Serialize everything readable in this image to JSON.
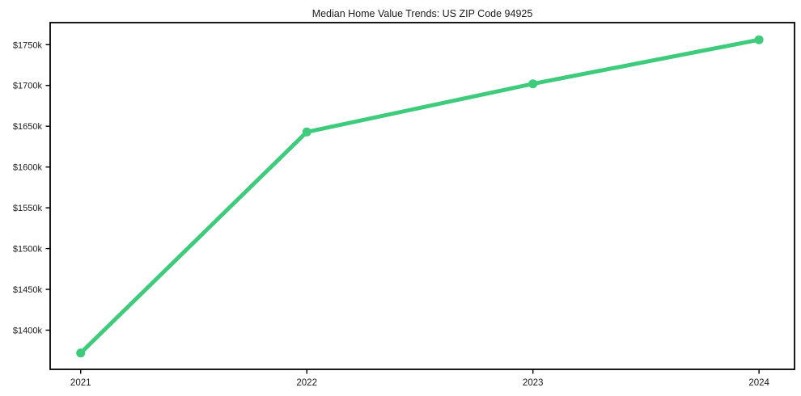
{
  "chart_data": {
    "type": "line",
    "title": "Median Home Value Trends: US ZIP Code 94925",
    "xlabel": "",
    "ylabel": "",
    "x": [
      2021,
      2022,
      2023,
      2024
    ],
    "x_labels": [
      "2021",
      "2022",
      "2023",
      "2024"
    ],
    "series": [
      {
        "name": "Median Home Value",
        "values": [
          1372,
          1643,
          1702,
          1756
        ]
      }
    ],
    "unit": "USD thousands",
    "y_ticks": [
      1400,
      1450,
      1500,
      1550,
      1600,
      1650,
      1700,
      1750
    ],
    "y_tick_labels": [
      "$1400k",
      "$1450k",
      "$1500k",
      "$1550k",
      "$1600k",
      "$1650k",
      "$1700k",
      "$1750k"
    ],
    "xlim": [
      2020.865,
      2024.157
    ],
    "ylim": [
      1352,
      1777
    ],
    "grid": false,
    "legend": "none",
    "line_color": "#3ecb7b",
    "marker_color": "#3ecb7b",
    "axis_color": "#000000",
    "text_color": "#1a1a1a"
  }
}
